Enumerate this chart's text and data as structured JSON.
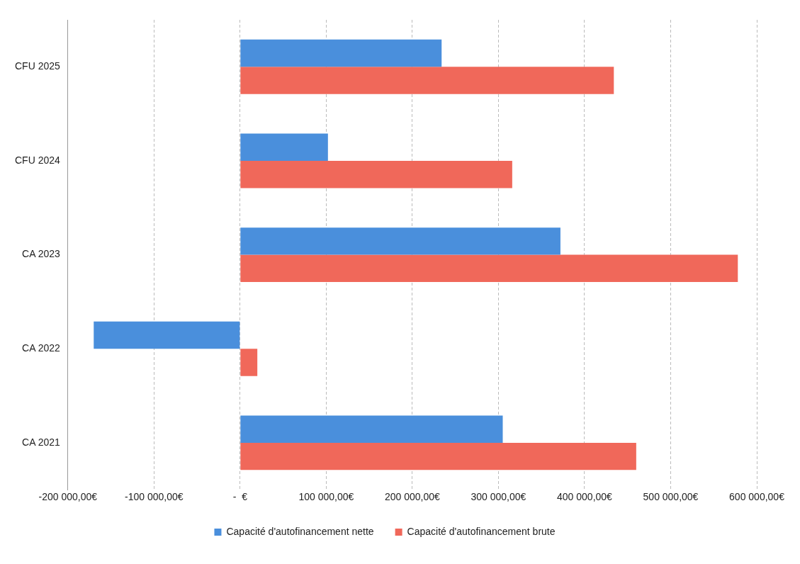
{
  "chart_data": {
    "type": "bar",
    "orientation": "horizontal",
    "categories": [
      "CFU 2025",
      "CFU 2024",
      "CA 2023",
      "CA 2022",
      "CA 2021"
    ],
    "series": [
      {
        "name": "Capacité d'autofinancement nette",
        "color": "#4a8fdc",
        "values": [
          234000,
          102000,
          372000,
          -170000,
          305000
        ]
      },
      {
        "name": "Capacité d'autofinancement brute",
        "color": "#f0685a",
        "values": [
          434000,
          316000,
          578000,
          20000,
          460000
        ]
      }
    ],
    "xlim": [
      -200000,
      600000
    ],
    "xticks": [
      {
        "value": -200000,
        "label": "-200 000,00€"
      },
      {
        "value": -100000,
        "label": "-100 000,00€"
      },
      {
        "value": 0,
        "label": "-  €"
      },
      {
        "value": 100000,
        "label": "100 000,00€"
      },
      {
        "value": 200000,
        "label": "200 000,00€"
      },
      {
        "value": 300000,
        "label": "300 000,00€"
      },
      {
        "value": 400000,
        "label": "400 000,00€"
      },
      {
        "value": 500000,
        "label": "500 000,00€"
      },
      {
        "value": 600000,
        "label": "600 000,00€"
      }
    ],
    "grid": "x",
    "legend": "bottom"
  }
}
